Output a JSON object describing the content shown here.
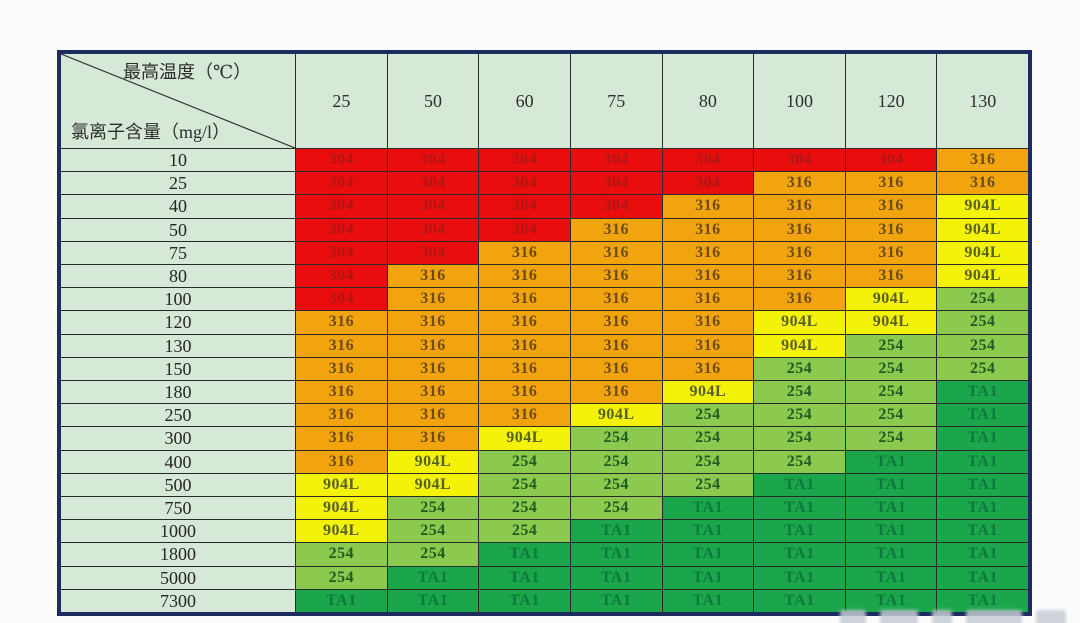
{
  "canvas": {
    "background": "#fcfcfc"
  },
  "table": {
    "corner": {
      "top_label": "最高温度（℃）",
      "bottom_label": "氯离子含量（mg/l）"
    }
  },
  "chart_data": {
    "type": "heatmap",
    "title": "",
    "x_axis_label": "最高温度（℃）",
    "y_axis_label": "氯离子含量（mg/l）",
    "columns": [
      "25",
      "50",
      "60",
      "75",
      "80",
      "100",
      "120",
      "130"
    ],
    "rows": [
      "10",
      "25",
      "40",
      "50",
      "75",
      "80",
      "100",
      "120",
      "130",
      "150",
      "180",
      "250",
      "300",
      "400",
      "500",
      "750",
      "1000",
      "1800",
      "5000",
      "7300"
    ],
    "grid": [
      [
        "304",
        "304",
        "304",
        "304",
        "304",
        "304",
        "304",
        "316"
      ],
      [
        "304",
        "304",
        "304",
        "304",
        "304",
        "316",
        "316",
        "316"
      ],
      [
        "304",
        "304",
        "304",
        "304",
        "316",
        "316",
        "316",
        "904L"
      ],
      [
        "304",
        "304",
        "304",
        "316",
        "316",
        "316",
        "316",
        "904L"
      ],
      [
        "304",
        "304",
        "316",
        "316",
        "316",
        "316",
        "316",
        "904L"
      ],
      [
        "304",
        "316",
        "316",
        "316",
        "316",
        "316",
        "316",
        "904L"
      ],
      [
        "304",
        "316",
        "316",
        "316",
        "316",
        "316",
        "904L",
        "254"
      ],
      [
        "316",
        "316",
        "316",
        "316",
        "316",
        "904L",
        "904L",
        "254"
      ],
      [
        "316",
        "316",
        "316",
        "316",
        "316",
        "904L",
        "254",
        "254"
      ],
      [
        "316",
        "316",
        "316",
        "316",
        "316",
        "254",
        "254",
        "254"
      ],
      [
        "316",
        "316",
        "316",
        "316",
        "904L",
        "254",
        "254",
        "TA1"
      ],
      [
        "316",
        "316",
        "316",
        "904L",
        "254",
        "254",
        "254",
        "TA1"
      ],
      [
        "316",
        "316",
        "904L",
        "254",
        "254",
        "254",
        "254",
        "TA1"
      ],
      [
        "316",
        "904L",
        "254",
        "254",
        "254",
        "254",
        "TA1",
        "TA1"
      ],
      [
        "904L",
        "904L",
        "254",
        "254",
        "254",
        "TA1",
        "TA1",
        "TA1"
      ],
      [
        "904L",
        "254",
        "254",
        "254",
        "TA1",
        "TA1",
        "TA1",
        "TA1"
      ],
      [
        "904L",
        "254",
        "254",
        "TA1",
        "TA1",
        "TA1",
        "TA1",
        "TA1"
      ],
      [
        "254",
        "254",
        "TA1",
        "TA1",
        "TA1",
        "TA1",
        "TA1",
        "TA1"
      ],
      [
        "254",
        "TA1",
        "TA1",
        "TA1",
        "TA1",
        "TA1",
        "TA1",
        "TA1"
      ],
      [
        "TA1",
        "TA1",
        "TA1",
        "TA1",
        "TA1",
        "TA1",
        "TA1",
        "TA1"
      ]
    ],
    "material_colors": {
      "304": {
        "bg": "#e90d0d",
        "text": "#b01616"
      },
      "316": {
        "bg": "#f2a40f",
        "text": "#6e4a14"
      },
      "904L": {
        "bg": "#f5f20a",
        "text": "#566126"
      },
      "254": {
        "bg": "#8cc94f",
        "text": "#1f5c1f"
      },
      "TA1": {
        "bg": "#1ca64c",
        "text": "#0c7a3c"
      }
    },
    "layout_colors": {
      "header_bg": "#d6e9d6",
      "header_text": "#2e2e2e",
      "outer_border": "#1d2c5e",
      "gridline": "#2a2a2a"
    },
    "legend_position": "none",
    "grid_on": true
  }
}
